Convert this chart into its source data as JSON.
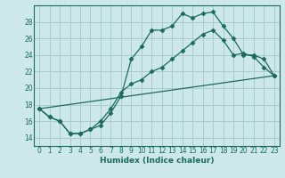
{
  "xlabel": "Humidex (Indice chaleur)",
  "bg_color": "#cce8e8",
  "grid_color": "#aacccc",
  "line_color": "#1a6b5a",
  "xlim": [
    -0.5,
    23.5
  ],
  "ylim": [
    13.0,
    30.0
  ],
  "yticks": [
    14,
    16,
    18,
    20,
    22,
    24,
    26,
    28
  ],
  "xticks": [
    0,
    1,
    2,
    3,
    4,
    5,
    6,
    7,
    8,
    9,
    10,
    11,
    12,
    13,
    14,
    15,
    16,
    17,
    18,
    19,
    20,
    21,
    22,
    23
  ],
  "line1_x": [
    0,
    1,
    2,
    3,
    4,
    5,
    6,
    7,
    8,
    9,
    10,
    11,
    12,
    13,
    14,
    15,
    16,
    17,
    18,
    19,
    20,
    21,
    22,
    23
  ],
  "line1_y": [
    17.5,
    16.5,
    16.0,
    14.5,
    14.5,
    15.0,
    15.5,
    17.0,
    19.0,
    23.5,
    25.0,
    27.0,
    27.0,
    27.5,
    29.0,
    28.5,
    29.0,
    29.2,
    27.5,
    26.0,
    24.0,
    24.0,
    23.5,
    21.5
  ],
  "line2_x": [
    0,
    1,
    2,
    3,
    4,
    5,
    6,
    7,
    8,
    9,
    10,
    11,
    12,
    13,
    14,
    15,
    16,
    17,
    18,
    19,
    20,
    21,
    22,
    23
  ],
  "line2_y": [
    17.5,
    16.5,
    16.0,
    14.5,
    14.5,
    15.0,
    16.0,
    17.5,
    19.5,
    20.5,
    21.0,
    22.0,
    22.5,
    23.5,
    24.5,
    25.5,
    26.5,
    27.0,
    25.8,
    24.0,
    24.2,
    23.8,
    22.5,
    21.5
  ],
  "line3_x": [
    0,
    23
  ],
  "line3_y": [
    17.5,
    21.5
  ]
}
